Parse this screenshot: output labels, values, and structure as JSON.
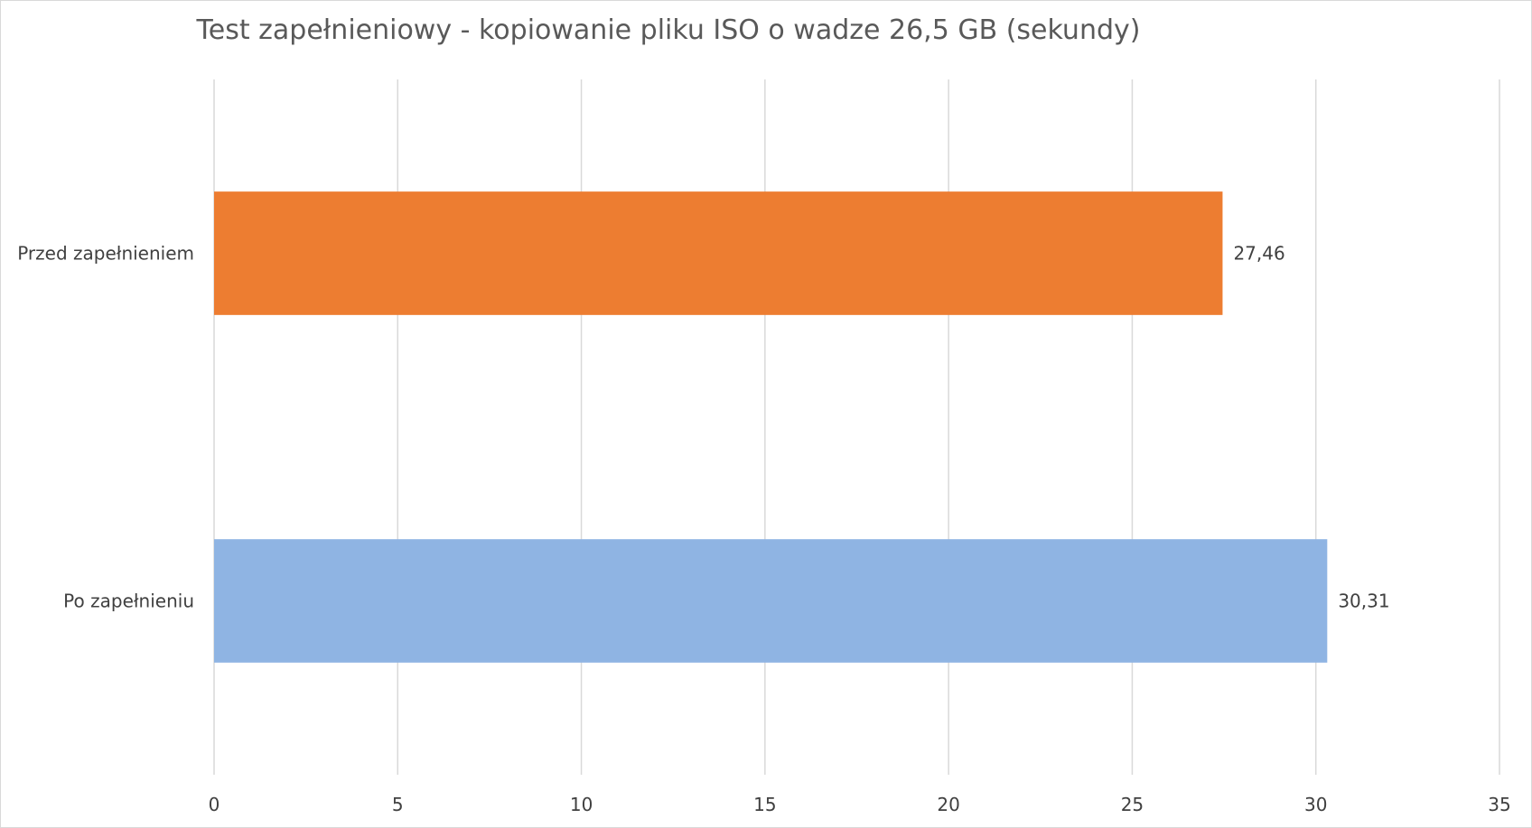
{
  "chart_data": {
    "type": "bar",
    "orientation": "horizontal",
    "title": "Test zapełnieniowy - kopiowanie pliku ISO o wadze 26,5 GB (sekundy)",
    "categories": [
      "Przed zapełnieniem",
      "Po zapełnieniu"
    ],
    "values": [
      27.46,
      30.31
    ],
    "value_labels": [
      "27,46",
      "30,31"
    ],
    "bar_colors": [
      "#ed7d31",
      "#8fb4e3"
    ],
    "xlim": [
      0,
      35
    ],
    "x_ticks": [
      0,
      5,
      10,
      15,
      20,
      25,
      30,
      35
    ],
    "x_tick_labels": [
      "0",
      "5",
      "10",
      "15",
      "20",
      "25",
      "30",
      "35"
    ],
    "grid": "vertical",
    "legend": "none",
    "gridline_color": "#d9d9d9",
    "text_color": "#404040",
    "title_color": "#595959"
  }
}
